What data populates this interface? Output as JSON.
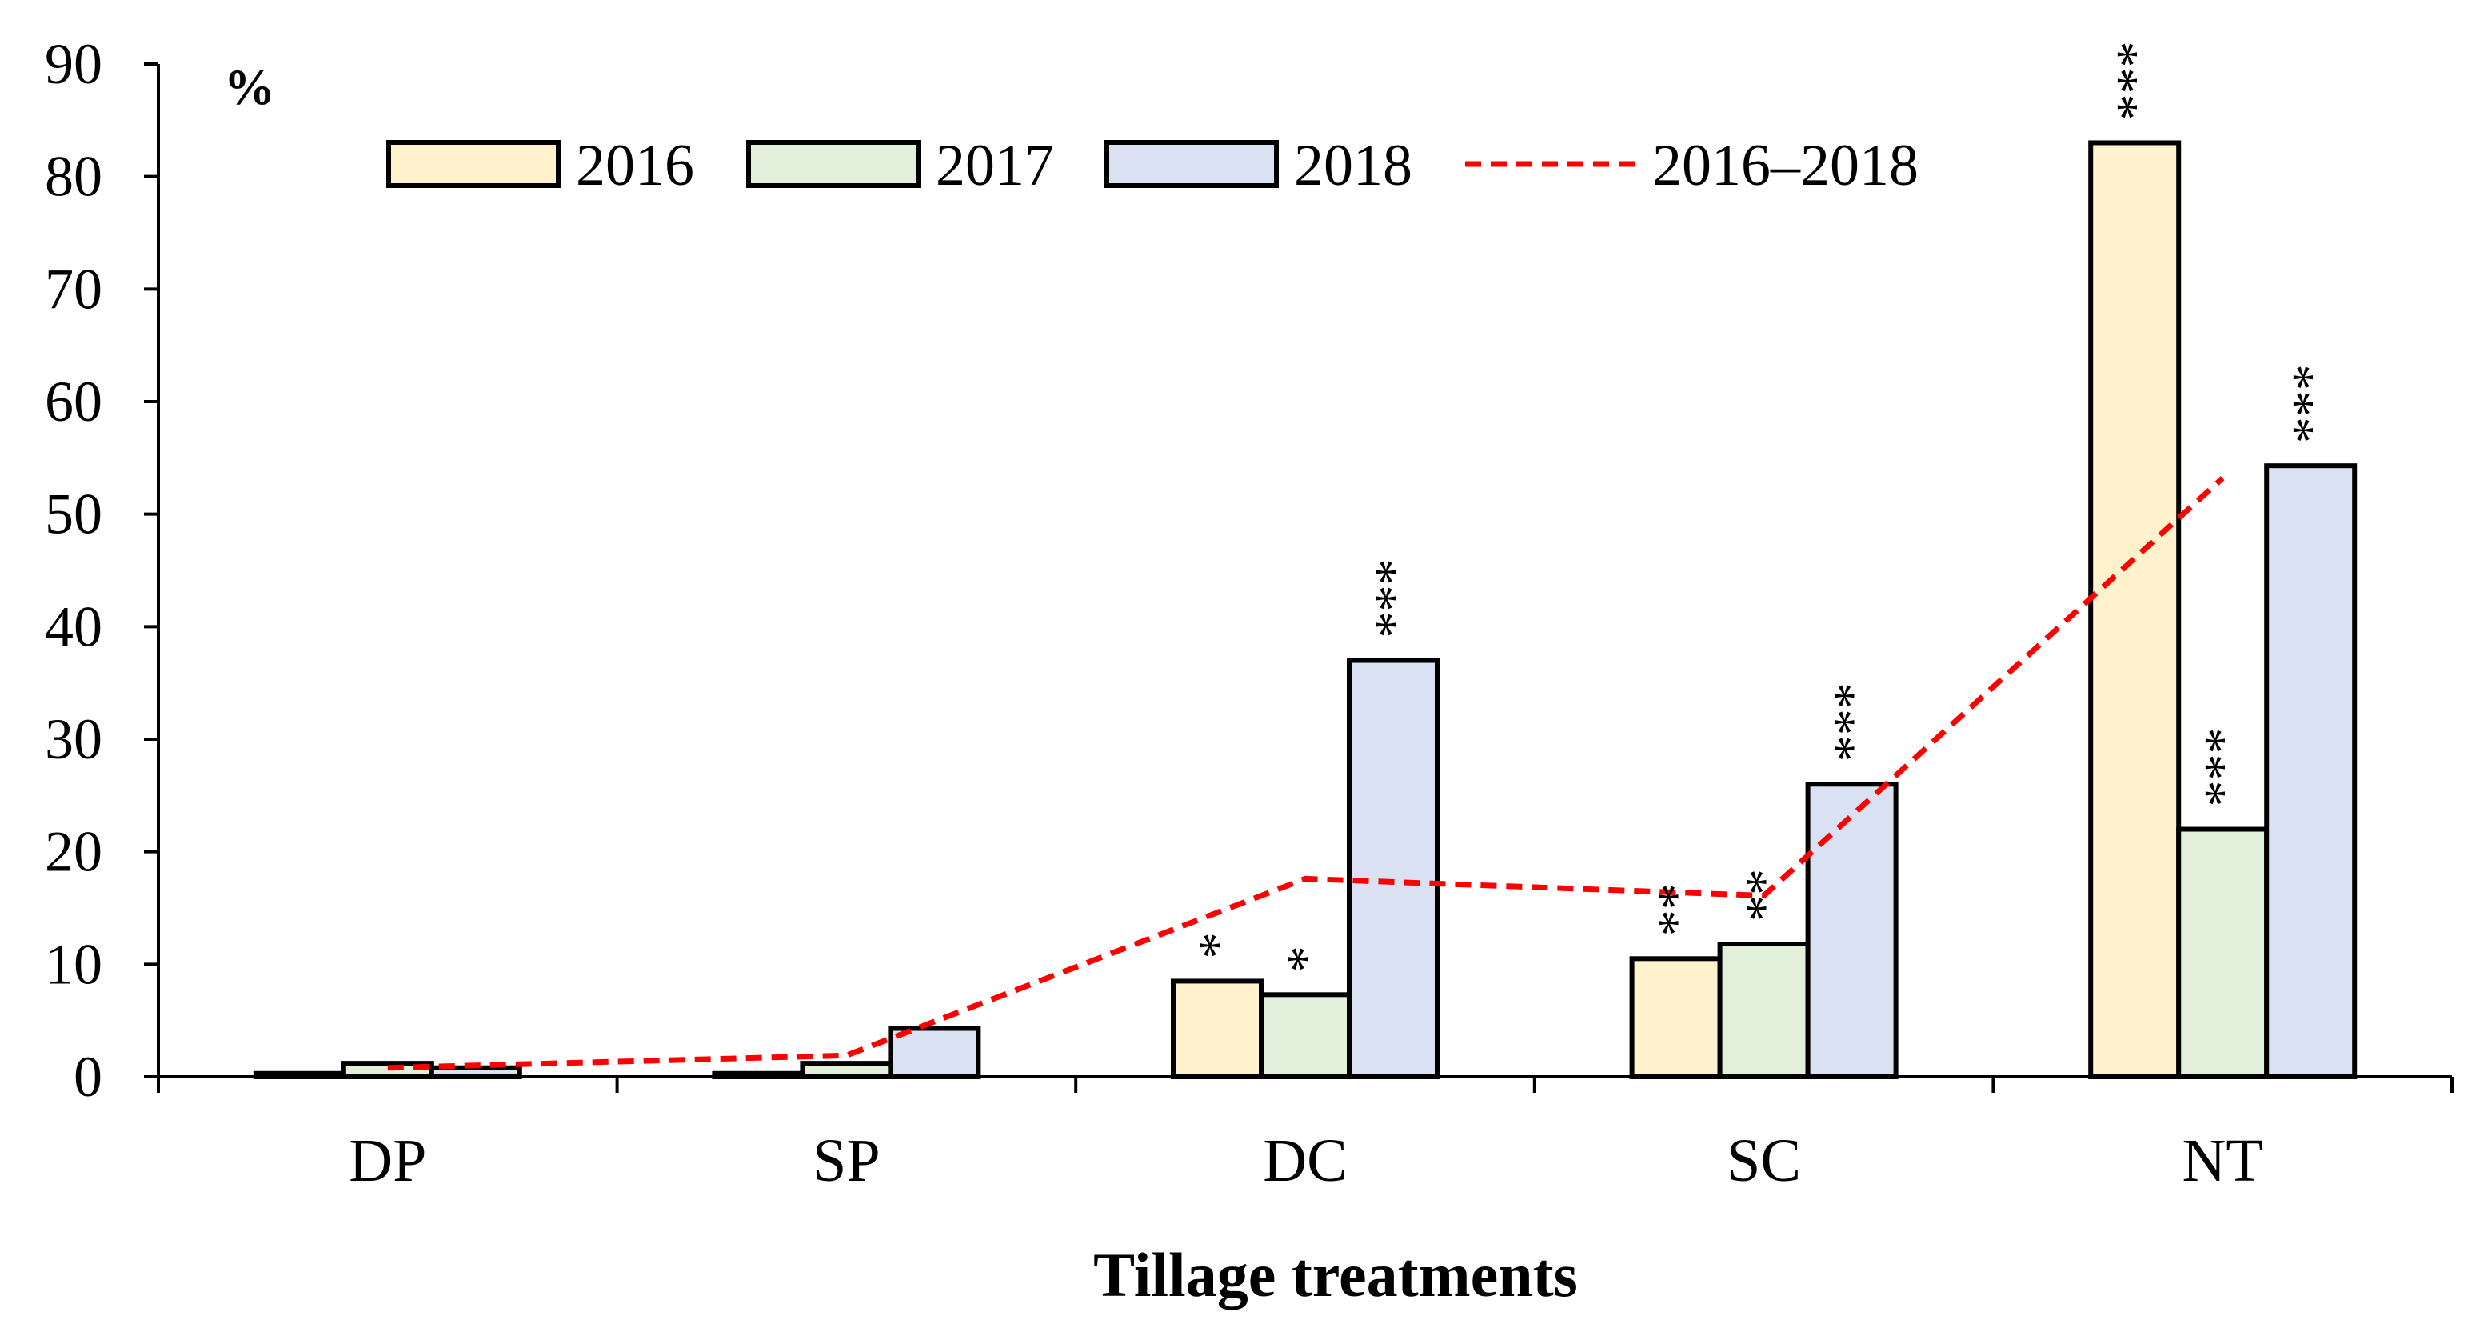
{
  "chart_data": {
    "type": "bar",
    "title": "",
    "xlabel": "Tillage treatments",
    "ylabel": "%",
    "ylim": [
      0,
      90
    ],
    "yticks": [
      0,
      10,
      20,
      30,
      40,
      50,
      60,
      70,
      80,
      90
    ],
    "categories": [
      "DP",
      "SP",
      "DC",
      "SC",
      "NT"
    ],
    "series": [
      {
        "name": "2016",
        "color": "#FFF2CC",
        "values": [
          0.3,
          0.3,
          8.5,
          10.5,
          83
        ],
        "sig": [
          "",
          "",
          "*",
          "**",
          "***"
        ]
      },
      {
        "name": "2017",
        "color": "#E2EFDA",
        "values": [
          1.2,
          1.2,
          7.3,
          11.8,
          22
        ],
        "sig": [
          "",
          "",
          "*",
          "**",
          "***"
        ]
      },
      {
        "name": "2018",
        "color": "#D9E1F2",
        "values": [
          0.8,
          4.3,
          37,
          26,
          54.3
        ],
        "sig": [
          "",
          "",
          "***",
          "***",
          "***"
        ]
      }
    ],
    "line_series": {
      "name": "2016–2018",
      "color": "#FF0000",
      "style": "dashed",
      "values": [
        0.8,
        1.9,
        17.6,
        16.1,
        53.2
      ]
    },
    "legend": [
      "2016",
      "2017",
      "2018",
      "2016–2018"
    ],
    "legend_position": "top",
    "grid": false
  }
}
